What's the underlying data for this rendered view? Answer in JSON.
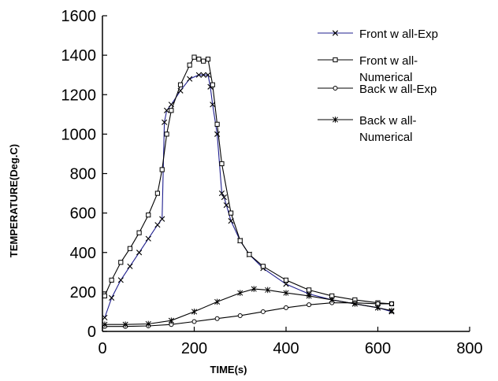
{
  "chart_data": {
    "type": "line",
    "title": "",
    "xlabel": "TIME(s)",
    "ylabel": "TEMPERATURE(Deg.C)",
    "xlim": [
      0,
      800
    ],
    "ylim": [
      0,
      1600
    ],
    "xticks": [
      0,
      200,
      400,
      600,
      800
    ],
    "yticks": [
      0,
      200,
      400,
      600,
      800,
      1000,
      1200,
      1400,
      1600
    ],
    "grid": false,
    "legend_position": "top-right",
    "series": [
      {
        "name": "Front w all-Exp",
        "legend_lines": [
          "Front w all-Exp"
        ],
        "marker": "x",
        "color": "#1f1f8f",
        "x": [
          5,
          20,
          40,
          60,
          80,
          100,
          120,
          130,
          135,
          140,
          150,
          170,
          190,
          210,
          220,
          230,
          235,
          240,
          250,
          260,
          265,
          270,
          280,
          300,
          320,
          350,
          400,
          450,
          500,
          550,
          600,
          630
        ],
        "y": [
          70,
          170,
          260,
          330,
          400,
          470,
          540,
          570,
          1060,
          1120,
          1150,
          1220,
          1280,
          1300,
          1300,
          1300,
          1240,
          1150,
          1000,
          700,
          680,
          640,
          560,
          460,
          390,
          320,
          240,
          190,
          160,
          140,
          120,
          100
        ]
      },
      {
        "name": "Front w all-Numerical",
        "legend_lines": [
          "Front w all-",
          "Numerical"
        ],
        "marker": "square",
        "color": "#000000",
        "x": [
          5,
          20,
          40,
          60,
          80,
          100,
          120,
          130,
          140,
          150,
          170,
          190,
          200,
          210,
          220,
          230,
          240,
          250,
          260,
          280,
          300,
          320,
          350,
          400,
          450,
          500,
          550,
          600,
          630
        ],
        "y": [
          180,
          260,
          350,
          420,
          500,
          590,
          700,
          820,
          1000,
          1120,
          1250,
          1350,
          1390,
          1380,
          1370,
          1380,
          1250,
          1050,
          850,
          600,
          460,
          390,
          330,
          260,
          210,
          180,
          160,
          145,
          140
        ]
      },
      {
        "name": "Back w all-Exp",
        "legend_lines": [
          "Back w all-Exp"
        ],
        "marker": "circle",
        "color": "#000000",
        "x": [
          5,
          50,
          100,
          150,
          200,
          250,
          300,
          350,
          400,
          450,
          500,
          550,
          600,
          630
        ],
        "y": [
          25,
          25,
          28,
          35,
          50,
          65,
          80,
          100,
          120,
          135,
          145,
          145,
          140,
          140
        ]
      },
      {
        "name": "Back w all-Numerical",
        "legend_lines": [
          "Back w all-",
          "Numerical"
        ],
        "marker": "asterisk",
        "color": "#000000",
        "x": [
          5,
          50,
          100,
          150,
          200,
          250,
          300,
          330,
          360,
          400,
          450,
          500,
          550,
          600,
          630
        ],
        "y": [
          35,
          35,
          38,
          55,
          100,
          150,
          195,
          215,
          210,
          195,
          180,
          160,
          140,
          120,
          105
        ]
      }
    ]
  }
}
